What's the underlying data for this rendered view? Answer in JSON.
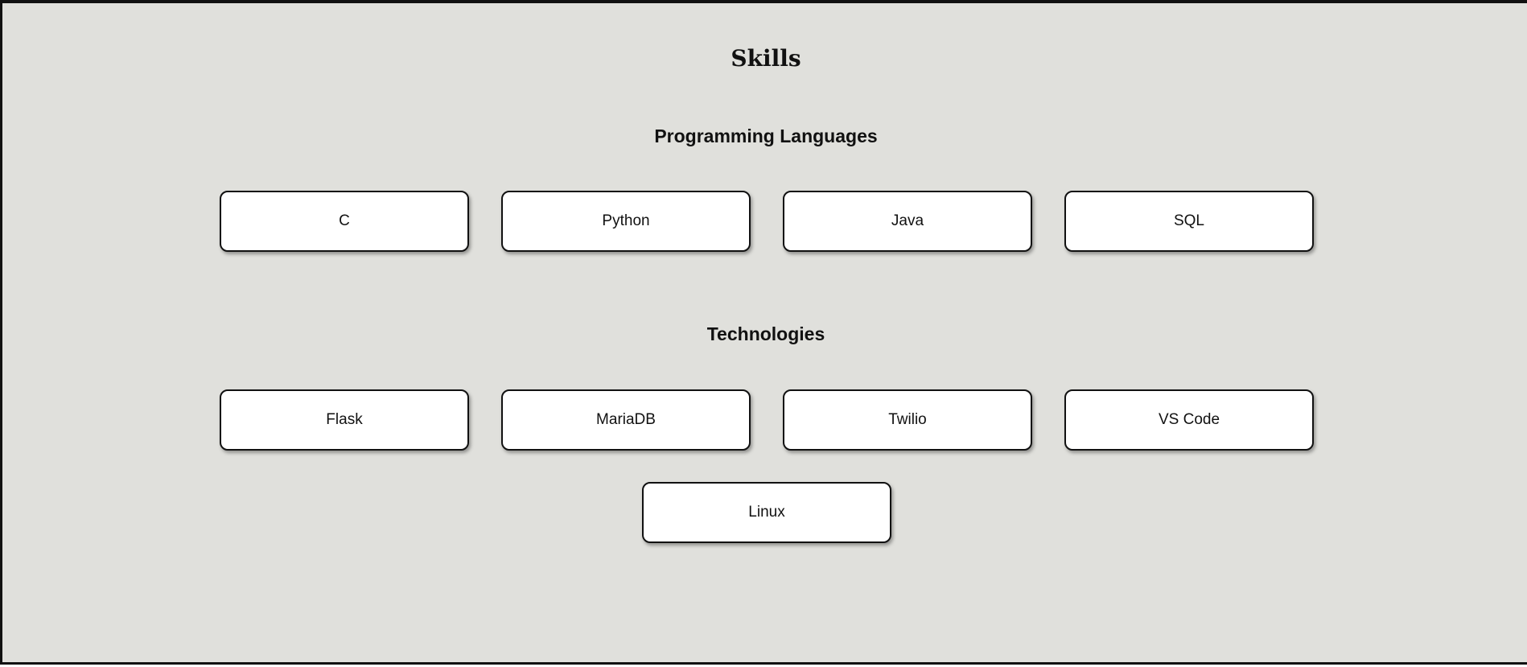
{
  "page": {
    "title": "Skills",
    "background_color": "#e0e0dc",
    "card_color": "#ffffff",
    "border_color": "#111111"
  },
  "sections": {
    "languages": {
      "heading": "Programming Languages",
      "items": [
        "C",
        "Python",
        "Java",
        "SQL"
      ]
    },
    "technologies": {
      "heading": "Technologies",
      "items": [
        "Flask",
        "MariaDB",
        "Twilio",
        "VS Code",
        "Linux"
      ]
    }
  }
}
